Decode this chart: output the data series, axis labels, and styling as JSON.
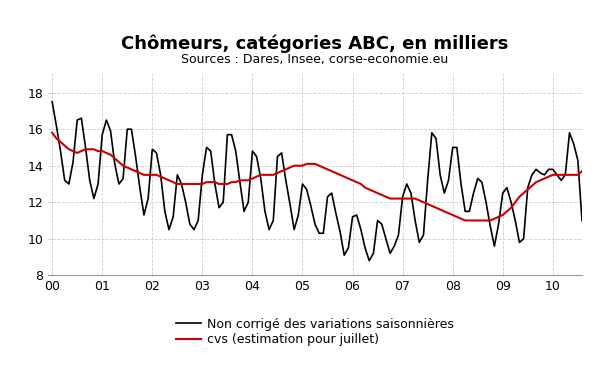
{
  "title": "Chômeurs, catégories ABC, en milliers",
  "subtitle": "Sources : Dares, Insee, corse-economie.eu",
  "ylim": [
    8,
    19
  ],
  "yticks": [
    8,
    10,
    12,
    14,
    16,
    18
  ],
  "xtick_labels": [
    "00",
    "01",
    "02",
    "03",
    "04",
    "05",
    "06",
    "07",
    "08",
    "09",
    "10"
  ],
  "xtick_positions": [
    0,
    12,
    24,
    36,
    48,
    60,
    72,
    84,
    96,
    108,
    120
  ],
  "legend_black": "Non corrigé des variations saisonnières",
  "legend_red": "cvs (estimation pour juillet)",
  "line_black_color": "#000000",
  "line_red_color": "#cc0000",
  "background_color": "#ffffff",
  "grid_color": "#cccccc",
  "title_fontsize": 13,
  "subtitle_fontsize": 9,
  "legend_fontsize": 9,
  "tick_fontsize": 9,
  "raw": [
    17.5,
    16.2,
    14.8,
    13.2,
    13.0,
    14.2,
    16.5,
    16.6,
    15.0,
    13.2,
    12.2,
    13.0,
    15.7,
    16.5,
    15.9,
    14.1,
    13.0,
    13.3,
    16.0,
    16.0,
    14.5,
    12.8,
    11.3,
    12.2,
    14.9,
    14.7,
    13.5,
    11.5,
    10.5,
    11.2,
    13.5,
    13.0,
    12.0,
    10.8,
    10.5,
    11.0,
    13.5,
    15.0,
    14.8,
    13.0,
    11.7,
    12.0,
    15.7,
    15.7,
    14.8,
    13.1,
    11.5,
    12.0,
    14.8,
    14.5,
    13.3,
    11.5,
    10.5,
    11.0,
    14.5,
    14.7,
    13.2,
    11.9,
    10.5,
    11.3,
    13.0,
    12.7,
    11.8,
    10.8,
    10.3,
    10.3,
    12.3,
    12.5,
    11.4,
    10.4,
    9.1,
    9.5,
    11.2,
    11.3,
    10.5,
    9.5,
    8.8,
    9.2,
    11.0,
    10.8,
    10.0,
    9.2,
    9.6,
    10.2,
    12.3,
    13.0,
    12.5,
    11.0,
    9.8,
    10.2,
    13.2,
    15.8,
    15.5,
    13.5,
    12.5,
    13.2,
    15.0,
    15.0,
    13.0,
    11.5,
    11.5,
    12.5,
    13.3,
    13.1,
    12.0,
    10.7,
    9.6,
    10.8,
    12.5,
    12.8,
    12.0,
    11.0,
    9.8,
    10.0,
    12.8,
    13.5,
    13.8,
    13.6,
    13.5,
    13.8,
    13.8,
    13.5,
    13.2,
    13.5,
    15.8,
    15.2,
    14.3,
    11.0
  ],
  "cvs": [
    15.8,
    15.5,
    15.3,
    15.1,
    14.9,
    14.8,
    14.7,
    14.8,
    14.9,
    14.9,
    14.9,
    14.8,
    14.8,
    14.7,
    14.6,
    14.4,
    14.2,
    14.0,
    13.9,
    13.8,
    13.7,
    13.6,
    13.5,
    13.5,
    13.5,
    13.5,
    13.4,
    13.3,
    13.2,
    13.1,
    13.0,
    13.0,
    13.0,
    13.0,
    13.0,
    13.0,
    13.0,
    13.1,
    13.1,
    13.1,
    13.0,
    13.0,
    13.0,
    13.1,
    13.1,
    13.2,
    13.2,
    13.2,
    13.3,
    13.4,
    13.5,
    13.5,
    13.5,
    13.5,
    13.6,
    13.7,
    13.8,
    13.9,
    14.0,
    14.0,
    14.0,
    14.1,
    14.1,
    14.1,
    14.0,
    13.9,
    13.8,
    13.7,
    13.6,
    13.5,
    13.4,
    13.3,
    13.2,
    13.1,
    13.0,
    12.8,
    12.7,
    12.6,
    12.5,
    12.4,
    12.3,
    12.2,
    12.2,
    12.2,
    12.2,
    12.2,
    12.2,
    12.2,
    12.1,
    12.0,
    11.9,
    11.8,
    11.7,
    11.6,
    11.5,
    11.4,
    11.3,
    11.2,
    11.1,
    11.0,
    11.0,
    11.0,
    11.0,
    11.0,
    11.0,
    11.0,
    11.1,
    11.2,
    11.3,
    11.5,
    11.7,
    12.0,
    12.3,
    12.5,
    12.7,
    12.9,
    13.1,
    13.2,
    13.3,
    13.4,
    13.5,
    13.5,
    13.5,
    13.5,
    13.5,
    13.5,
    13.5,
    13.7
  ]
}
